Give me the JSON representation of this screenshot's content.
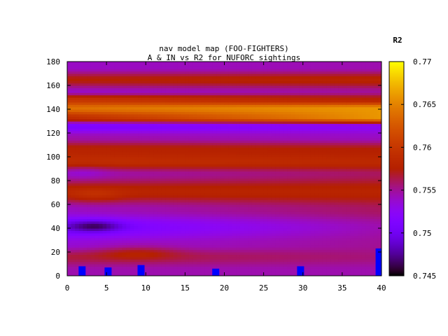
{
  "chart_data": {
    "type": "heatmap",
    "title": "nav model map (FOO-FIGHTERS)",
    "subtitle": "A & IN vs R2 for NUFORC sightings",
    "xlabel": "",
    "ylabel": "",
    "xlim": [
      0,
      40
    ],
    "ylim": [
      0,
      180
    ],
    "x_ticks": [
      0,
      5,
      10,
      15,
      20,
      25,
      30,
      35,
      40
    ],
    "y_ticks": [
      0,
      20,
      40,
      60,
      80,
      100,
      120,
      140,
      160,
      180
    ],
    "colorbar": {
      "label": "R2",
      "min": 0.745,
      "max": 0.77,
      "ticks": [
        0.745,
        0.75,
        0.755,
        0.76,
        0.765,
        0.77
      ],
      "tick_labels": [
        "0.745",
        "0.75",
        "0.755",
        "0.76",
        "0.765",
        "0.77"
      ],
      "palette": "black-purple-red-orange-yellow"
    },
    "bands": [
      {
        "y": [
          0,
          10
        ],
        "base": 0.7545
      },
      {
        "y": [
          10,
          22
        ],
        "base": 0.7565,
        "right": 0.7555
      },
      {
        "y": [
          22,
          32
        ],
        "base": 0.7535,
        "right": 0.755
      },
      {
        "y": [
          32,
          50
        ],
        "base": 0.7505,
        "right": 0.7545
      },
      {
        "y": [
          50,
          62
        ],
        "base": 0.754,
        "right": 0.756
      },
      {
        "y": [
          62,
          80
        ],
        "base": 0.758,
        "right": 0.758
      },
      {
        "y": [
          80,
          92
        ],
        "base": 0.7545,
        "right": 0.756
      },
      {
        "y": [
          92,
          100
        ],
        "base": 0.759,
        "right": 0.7585
      },
      {
        "y": [
          100,
          112
        ],
        "base": 0.758,
        "right": 0.7575
      },
      {
        "y": [
          112,
          122
        ],
        "base": 0.7545,
        "right": 0.754
      },
      {
        "y": [
          122,
          130
        ],
        "base": 0.751,
        "right": 0.7525
      },
      {
        "y": [
          130,
          136
        ],
        "base": 0.759,
        "right": 0.766
      },
      {
        "y": [
          136,
          146
        ],
        "base": 0.764,
        "right": 0.766
      },
      {
        "y": [
          146,
          150
        ],
        "base": 0.76,
        "right": 0.758
      },
      {
        "y": [
          150,
          160
        ],
        "base": 0.754,
        "right": 0.755
      },
      {
        "y": [
          160,
          170
        ],
        "base": 0.7575,
        "right": 0.758
      },
      {
        "y": [
          170,
          180
        ],
        "base": 0.754,
        "right": 0.7545
      }
    ],
    "hotspots": [
      {
        "x": 3.5,
        "y": 42,
        "rx": 3.5,
        "ry": 5,
        "delta": -0.0045
      },
      {
        "x": 3.5,
        "y": 68,
        "rx": 3.5,
        "ry": 6,
        "delta": 0.0015
      },
      {
        "x": 9.0,
        "y": 20,
        "rx": 5.0,
        "ry": 6,
        "delta": 0.002
      },
      {
        "x": 2.0,
        "y": 88,
        "rx": 3.0,
        "ry": 6,
        "delta": -0.001
      }
    ],
    "markers": [
      {
        "x": 1.9,
        "y_top": 8,
        "value": 0.745
      },
      {
        "x": 5.2,
        "y_top": 7,
        "value": 0.745
      },
      {
        "x": 9.4,
        "y_top": 9,
        "value": 0.745
      },
      {
        "x": 18.9,
        "y_top": 6,
        "value": 0.745
      },
      {
        "x": 29.7,
        "y_top": 8,
        "value": 0.745
      },
      {
        "x": 39.7,
        "y_top": 23,
        "value": 0.745
      }
    ]
  }
}
